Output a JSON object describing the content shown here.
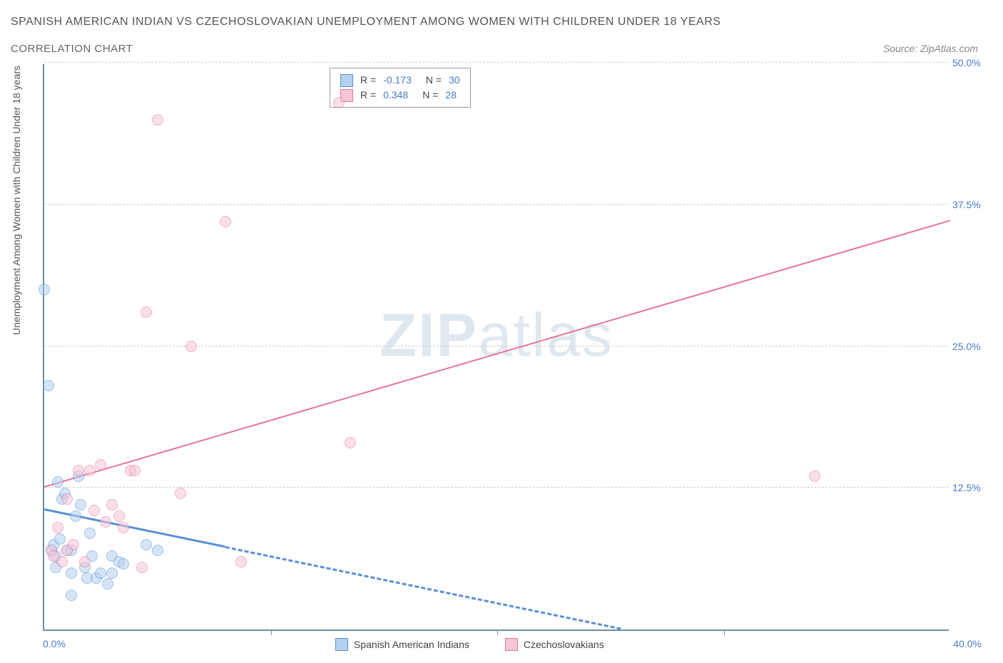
{
  "chart": {
    "type": "scatter",
    "title_line1": "SPANISH AMERICAN INDIAN VS CZECHOSLOVAKIAN UNEMPLOYMENT AMONG WOMEN WITH CHILDREN UNDER 18 YEARS",
    "title_line2": "CORRELATION CHART",
    "source": "Source: ZipAtlas.com",
    "y_axis_label": "Unemployment Among Women with Children Under 18 years",
    "background_color": "#ffffff",
    "axis_color": "#6b8fa3",
    "grid_color": "#d0d0d0",
    "tick_label_color": "#4a7bc8",
    "title_color": "#555555",
    "watermark_text_bold": "ZIP",
    "watermark_text_light": "atlas",
    "watermark_color": "#cdd9e5",
    "x_axis": {
      "min": 0.0,
      "max": 40.0,
      "tick_step": 10.0,
      "min_label": "0.0%",
      "max_label": "40.0%"
    },
    "y_axis": {
      "min": 0.0,
      "max": 50.0,
      "tick_step": 12.5,
      "ticks": [
        12.5,
        25.0,
        37.5,
        50.0
      ],
      "tick_labels": [
        "12.5%",
        "25.0%",
        "37.5%",
        "50.0%"
      ]
    },
    "marker_radius": 8,
    "marker_opacity": 0.55,
    "series": [
      {
        "name": "Spanish American Indians",
        "color_fill": "#b3d1f0",
        "color_stroke": "#5a8fd6",
        "correlation_r": "-0.173",
        "correlation_n": "30",
        "trend": {
          "y_at_xmin": 10.5,
          "y_at_xmax": -6.0,
          "solid_until_x": 8.0,
          "line_width": 3
        },
        "points": [
          [
            0.0,
            30.0
          ],
          [
            0.2,
            21.5
          ],
          [
            0.3,
            7.0
          ],
          [
            0.4,
            7.5
          ],
          [
            0.5,
            6.5
          ],
          [
            0.5,
            5.5
          ],
          [
            0.6,
            13.0
          ],
          [
            0.7,
            8.0
          ],
          [
            0.8,
            11.5
          ],
          [
            0.9,
            12.0
          ],
          [
            1.0,
            7.0
          ],
          [
            1.2,
            7.0
          ],
          [
            1.2,
            5.0
          ],
          [
            1.4,
            10.0
          ],
          [
            1.5,
            13.5
          ],
          [
            1.6,
            11.0
          ],
          [
            1.8,
            5.5
          ],
          [
            1.9,
            4.5
          ],
          [
            2.0,
            8.5
          ],
          [
            2.1,
            6.5
          ],
          [
            2.3,
            4.5
          ],
          [
            2.5,
            5.0
          ],
          [
            2.8,
            4.0
          ],
          [
            3.0,
            6.5
          ],
          [
            3.0,
            5.0
          ],
          [
            1.2,
            3.0
          ],
          [
            3.3,
            6.0
          ],
          [
            3.5,
            5.8
          ],
          [
            4.5,
            7.5
          ],
          [
            5.0,
            7.0
          ]
        ]
      },
      {
        "name": "Czechoslovakians",
        "color_fill": "#f5c6d6",
        "color_stroke": "#e6749e",
        "correlation_r": "0.348",
        "correlation_n": "28",
        "trend": {
          "y_at_xmin": 12.5,
          "y_at_xmax": 36.0,
          "solid_until_x": 40.0,
          "line_width": 2
        },
        "points": [
          [
            0.3,
            7.0
          ],
          [
            0.4,
            6.5
          ],
          [
            0.6,
            9.0
          ],
          [
            0.8,
            6.0
          ],
          [
            1.0,
            7.0
          ],
          [
            1.0,
            11.5
          ],
          [
            1.3,
            7.5
          ],
          [
            1.5,
            14.0
          ],
          [
            1.8,
            6.0
          ],
          [
            2.0,
            14.0
          ],
          [
            2.2,
            10.5
          ],
          [
            2.5,
            14.5
          ],
          [
            2.7,
            9.5
          ],
          [
            3.0,
            11.0
          ],
          [
            3.3,
            10.0
          ],
          [
            3.5,
            9.0
          ],
          [
            3.8,
            14.0
          ],
          [
            4.0,
            14.0
          ],
          [
            4.5,
            28.0
          ],
          [
            5.0,
            45.0
          ],
          [
            6.0,
            12.0
          ],
          [
            6.5,
            25.0
          ],
          [
            8.0,
            36.0
          ],
          [
            8.7,
            6.0
          ],
          [
            13.0,
            46.5
          ],
          [
            13.5,
            16.5
          ],
          [
            34.0,
            13.5
          ],
          [
            4.3,
            5.5
          ]
        ]
      }
    ],
    "bottom_legend": [
      {
        "label": "Spanish American Indians",
        "fill": "#b3d1f0",
        "stroke": "#5a8fd6"
      },
      {
        "label": "Czechoslovakians",
        "fill": "#f5c6d6",
        "stroke": "#e6749e"
      }
    ]
  }
}
